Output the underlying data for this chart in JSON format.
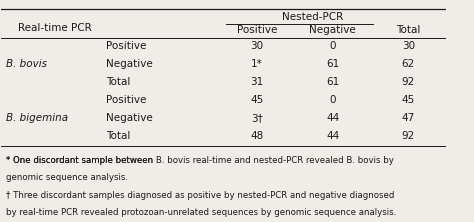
{
  "title_nested": "Nested-PCR",
  "col_headers": [
    "Positive",
    "Negative",
    "Total"
  ],
  "row_group1_label": "B. bovis",
  "row_group2_label": "B. bigemina",
  "sub_rows": [
    "Positive",
    "Negative",
    "Total"
  ],
  "data": [
    [
      "30",
      "0",
      "30"
    ],
    [
      "1*",
      "61",
      "62"
    ],
    [
      "31",
      "61",
      "92"
    ],
    [
      "45",
      "0",
      "45"
    ],
    [
      "3†",
      "44",
      "47"
    ],
    [
      "48",
      "44",
      "92"
    ]
  ],
  "realtime_pcr_label": "Real-time PCR",
  "footnote1": "* One discordant sample between B. bovis real-time and nested-PCR revealed B. bovis by",
  "footnote1b": "genomic sequence analysis.",
  "footnote2": "† Three discordant samples diagnosed as positive by nested-PCR and negative diagnosed",
  "footnote2b": "by real-time PCR revealed protozoan-unrelated sequences by genomic sequence analysis.",
  "bg_color": "#f0ede8",
  "text_color": "#1a1a1a",
  "font_size": 7.5,
  "footnote_font_size": 6.2
}
